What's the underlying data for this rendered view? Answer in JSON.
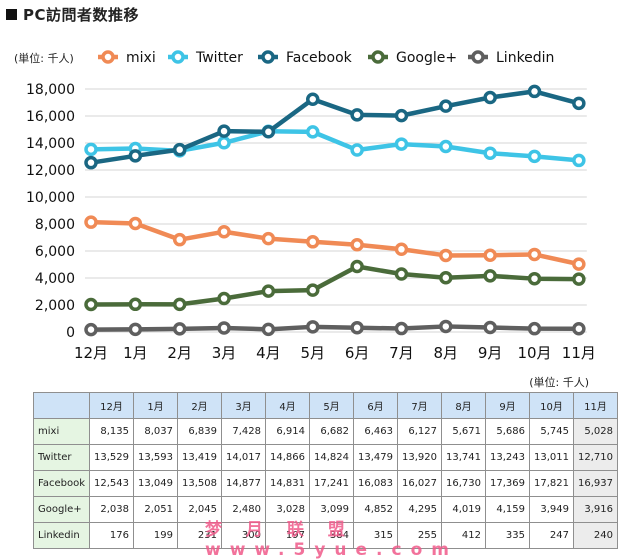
{
  "page": {
    "title": "PC訪問者数推移",
    "unit_label": "(単位: 千人)",
    "table_unit_label": "(単位: 千人)",
    "watermark": "梦 月 联 盟 www.5yue.com"
  },
  "chart_data": {
    "type": "line",
    "title": "PC訪問者数推移",
    "ylabel": "(単位: 千人)",
    "xlabel": "",
    "categories": [
      "12月",
      "1月",
      "2月",
      "3月",
      "4月",
      "5月",
      "6月",
      "7月",
      "8月",
      "9月",
      "10月",
      "11月"
    ],
    "ylim": [
      0,
      18000
    ],
    "yticks": [
      0,
      2000,
      4000,
      6000,
      8000,
      10000,
      12000,
      14000,
      16000,
      18000
    ],
    "ytick_labels": [
      "0",
      "2,000",
      "4,000",
      "6,000",
      "8,000",
      "10,000",
      "12,000",
      "14,000",
      "16,000",
      "18,000"
    ],
    "grid": true,
    "legend": "top",
    "series": [
      {
        "name": "mixi",
        "color": "#f08a55",
        "values": [
          8135,
          8037,
          6839,
          7428,
          6914,
          6682,
          6463,
          6127,
          5671,
          5686,
          5745,
          5028
        ]
      },
      {
        "name": "Twitter",
        "color": "#3ec4e6",
        "values": [
          13529,
          13593,
          13419,
          14017,
          14866,
          14824,
          13479,
          13920,
          13741,
          13243,
          13011,
          12710
        ]
      },
      {
        "name": "Facebook",
        "color": "#1a6783",
        "values": [
          12543,
          13049,
          13508,
          14877,
          14831,
          17241,
          16083,
          16027,
          16730,
          17369,
          17821,
          16937
        ]
      },
      {
        "name": "Google+",
        "color": "#4a6b3a",
        "values": [
          2038,
          2051,
          2045,
          2480,
          3028,
          3099,
          4852,
          4295,
          4019,
          4159,
          3949,
          3916
        ]
      },
      {
        "name": "Linkedin",
        "color": "#5f5f5f",
        "values": [
          176,
          199,
          231,
          300,
          197,
          384,
          315,
          255,
          412,
          335,
          247,
          240
        ]
      }
    ]
  },
  "table": {
    "headers": [
      "12月",
      "1月",
      "2月",
      "3月",
      "4月",
      "5月",
      "6月",
      "7月",
      "8月",
      "9月",
      "10月",
      "11月"
    ],
    "rows": [
      {
        "label": "mixi",
        "cells": [
          "8,135",
          "8,037",
          "6,839",
          "7,428",
          "6,914",
          "6,682",
          "6,463",
          "6,127",
          "5,671",
          "5,686",
          "5,745",
          "5,028"
        ]
      },
      {
        "label": "Twitter",
        "cells": [
          "13,529",
          "13,593",
          "13,419",
          "14,017",
          "14,866",
          "14,824",
          "13,479",
          "13,920",
          "13,741",
          "13,243",
          "13,011",
          "12,710"
        ]
      },
      {
        "label": "Facebook",
        "cells": [
          "12,543",
          "13,049",
          "13,508",
          "14,877",
          "14,831",
          "17,241",
          "16,083",
          "16,027",
          "16,730",
          "17,369",
          "17,821",
          "16,937"
        ]
      },
      {
        "label": "Google+",
        "cells": [
          "2,038",
          "2,051",
          "2,045",
          "2,480",
          "3,028",
          "3,099",
          "4,852",
          "4,295",
          "4,019",
          "4,159",
          "3,949",
          "3,916"
        ]
      },
      {
        "label": "Linkedin",
        "cells": [
          "176",
          "199",
          "231",
          "300",
          "197",
          "384",
          "315",
          "255",
          "412",
          "335",
          "247",
          "240"
        ]
      }
    ]
  }
}
